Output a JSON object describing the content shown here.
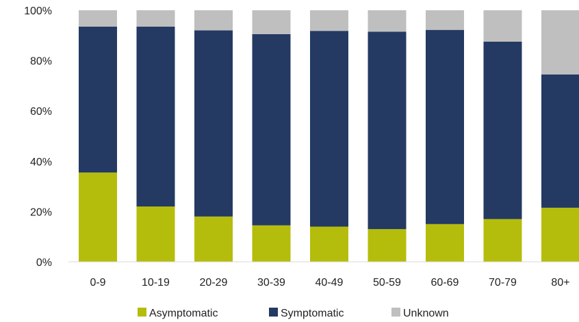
{
  "chart_data": {
    "type": "bar",
    "stacked": true,
    "normalized": true,
    "categories": [
      "0-9",
      "10-19",
      "20-29",
      "30-39",
      "40-49",
      "50-59",
      "60-69",
      "70-79",
      "80+"
    ],
    "series": [
      {
        "name": "Asymptomatic",
        "color": "#b5bd0c",
        "values": [
          35.5,
          22,
          18,
          14.5,
          14,
          13,
          15,
          17,
          21.5
        ]
      },
      {
        "name": "Symptomatic",
        "color": "#243a63",
        "values": [
          58,
          71.5,
          74,
          76,
          77.8,
          78.5,
          77.2,
          70.5,
          53
        ]
      },
      {
        "name": "Unknown",
        "color": "#bfbfbf",
        "values": [
          6.5,
          6.5,
          8,
          9.5,
          8.2,
          8.5,
          7.8,
          12.5,
          25.5
        ]
      }
    ],
    "y_ticks": [
      "0%",
      "20%",
      "40%",
      "60%",
      "80%",
      "100%"
    ],
    "ylim": [
      0,
      100
    ],
    "grid": false,
    "legend_position": "bottom"
  }
}
